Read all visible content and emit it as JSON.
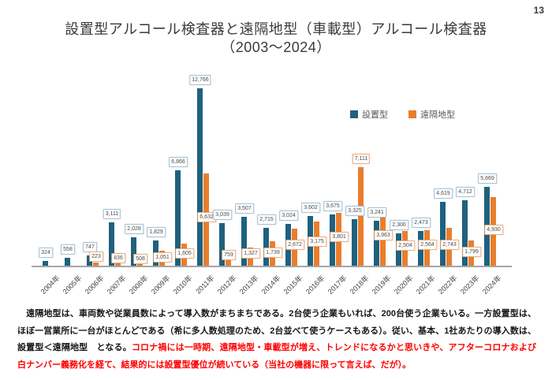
{
  "page": {
    "number": "13"
  },
  "title": {
    "line1": "設置型アルコール検査器と遠隔地型（車載型）アルコール検査器",
    "line2": "（2003～2024）"
  },
  "chart_data": {
    "type": "bar",
    "title": "設置型アルコール検査器と遠隔地型（車載型）アルコール検査器（2003～2024）",
    "categories": [
      "2004年",
      "2005年",
      "2006年",
      "2007年",
      "2008年",
      "2009年",
      "2010年",
      "2011年",
      "2012年",
      "2013年",
      "2014年",
      "2015年",
      "2016年",
      "2017年",
      "2018年",
      "2019年",
      "2020年",
      "2021年",
      "2022年",
      "2023年",
      "2024年"
    ],
    "series": [
      {
        "name": "設置型",
        "color": "#1F617E",
        "values": [
          324,
          558,
          747,
          3111,
          2028,
          1829,
          6866,
          12766,
          3039,
          3507,
          2715,
          3024,
          3602,
          3675,
          3325,
          3241,
          2300,
          2473,
          4619,
          4712,
          5669
        ],
        "label_border": "#A3C4D6"
      },
      {
        "name": "遠隔地型",
        "color": "#E97E2E",
        "values": [
          null,
          null,
          223,
          836,
          508,
          1051,
          1605,
          6632,
          759,
          1327,
          1739,
          2672,
          3175,
          3801,
          7111,
          3963,
          2504,
          2564,
          2743,
          1799,
          4930
        ],
        "label_border": "#F2AC79"
      }
    ],
    "data_labels": true,
    "y_axis_visible": false,
    "grid": false,
    "legend_position": "top-right",
    "ylim": [
      0,
      13000
    ]
  },
  "commentary": {
    "black_text": "　遠隔地型は、車両数や従業員数によって導入数がまちまちである。2台使う企業もいれば、200台使う企業もいる。一方設置型は、ほぼ一営業所に一台がほとんどである（希に多人数処理のため、2台並べて使うケースもある）。従い、基本、1社あたりの導入数は、設置型＜遠隔地型　となる。",
    "red_text": "コロナ禍には一時期、遠隔地型・車載型が増え、トレンドになるかと思いきや、アフターコロナおよび白ナンバー義務化を経て、結果的には設置型優位が続いている（当社の機器に限って言えば、だが）。",
    "red_color": "#FF0000"
  }
}
